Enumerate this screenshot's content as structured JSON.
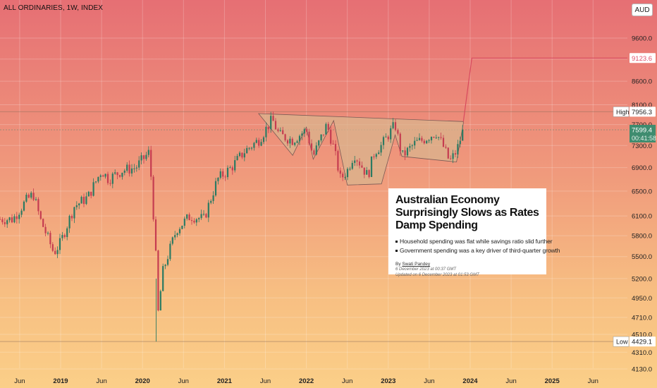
{
  "header": {
    "symbol_line": "ALL ORDINARIES, 1W, INDEX",
    "currency": "AUD"
  },
  "price_axis": {
    "ticks": [
      "9600.0",
      "9100.0",
      "8600.0",
      "8100.0",
      "7700.0",
      "7300.0",
      "6900.0",
      "6500.0",
      "6100.0",
      "5800.0",
      "5500.0",
      "5200.0",
      "4950.0",
      "4710.0",
      "4510.0",
      "4310.0",
      "4130.0"
    ],
    "tick_values": [
      9600,
      9100,
      8600,
      8100,
      7700,
      7300,
      6900,
      6500,
      6100,
      5800,
      5500,
      5200,
      4950,
      4710,
      4510,
      4310,
      4130
    ],
    "scale": "log"
  },
  "time_axis": {
    "ticks": [
      "Jun",
      "2019",
      "Jun",
      "2020",
      "Jun",
      "2021",
      "Jun",
      "2022",
      "Jun",
      "2023",
      "Jun",
      "2024",
      "Jun",
      "2025",
      "Jun"
    ]
  },
  "price_labels": {
    "target": {
      "value": "9123.6",
      "color": "#e0506a"
    },
    "high": {
      "label": "High",
      "value": "7956.3"
    },
    "current": {
      "value": "7599.4",
      "countdown": "00:41:58",
      "color": "#3f8c6f"
    },
    "low": {
      "label": "Low",
      "value": "4429.1"
    }
  },
  "colors": {
    "up": "#2b7a62",
    "down": "#c53c50",
    "pattern_fill": "#d9b48e",
    "projection": "#d84a5e"
  },
  "news": {
    "headline": "Australian Economy Surprisingly Slows as Rates Damp Spending",
    "bullets": [
      "Household spending was flat while savings ratio slid further",
      "Government spending was a key driver of third-quarter growth"
    ],
    "by_prefix": "By ",
    "author": "Swati Pandey",
    "published": "6 December 2023 at 00:37 GMT",
    "updated": "Updated on 6 December 2023 at 01:53 GMT"
  },
  "chart_data": {
    "type": "candlestick",
    "title": "ALL ORDINARIES, 1W, INDEX",
    "y_scale": "log",
    "ylim": [
      4080,
      10200
    ],
    "x_ticks": [
      "Jun",
      "2019",
      "Jun",
      "2020",
      "Jun",
      "2021",
      "Jun",
      "2022",
      "Jun",
      "2023",
      "Jun",
      "2024",
      "Jun",
      "2025",
      "Jun"
    ],
    "series": [
      {
        "name": "",
        "points": [
          [
            "2018-06",
            6050
          ],
          [
            "2018-08",
            6350
          ],
          [
            "2018-09",
            6450
          ],
          [
            "2018-10",
            6050
          ],
          [
            "2018-11",
            5800
          ],
          [
            "2018-12",
            5550
          ],
          [
            "2019-01",
            5700
          ],
          [
            "2019-03",
            6250
          ],
          [
            "2019-05",
            6400
          ],
          [
            "2019-07",
            6850
          ],
          [
            "2019-08",
            6700
          ],
          [
            "2019-10",
            6850
          ],
          [
            "2019-12",
            6900
          ],
          [
            "2020-02",
            7180
          ],
          [
            "2020-03",
            5400
          ],
          [
            "2020-03",
            4550
          ],
          [
            "2020-04",
            5300
          ],
          [
            "2020-06",
            5900
          ],
          [
            "2020-08",
            6100
          ],
          [
            "2020-10",
            6050
          ],
          [
            "2020-12",
            6700
          ],
          [
            "2021-02",
            6900
          ],
          [
            "2021-04",
            7200
          ],
          [
            "2021-06",
            7400
          ],
          [
            "2021-08",
            7800
          ],
          [
            "2021-09",
            7500
          ],
          [
            "2021-11",
            7400
          ],
          [
            "2022-01",
            7600
          ],
          [
            "2022-02",
            7100
          ],
          [
            "2022-04",
            7700
          ],
          [
            "2022-05",
            7250
          ],
          [
            "2022-06",
            6700
          ],
          [
            "2022-07",
            6850
          ],
          [
            "2022-08",
            7150
          ],
          [
            "2022-10",
            6750
          ],
          [
            "2022-11",
            7200
          ],
          [
            "2022-12",
            7300
          ],
          [
            "2023-02",
            7700
          ],
          [
            "2023-03",
            7100
          ],
          [
            "2023-05",
            7350
          ],
          [
            "2023-06",
            7400
          ],
          [
            "2023-08",
            7550
          ],
          [
            "2023-09",
            7300
          ],
          [
            "2023-10",
            7000
          ],
          [
            "2023-11",
            7200
          ],
          [
            "2023-12",
            7599.4
          ]
        ]
      }
    ],
    "pattern": "head and shoulders",
    "projected_target": 9123.6,
    "high": 7956.3,
    "low": 4429.1,
    "last": 7599.4
  }
}
